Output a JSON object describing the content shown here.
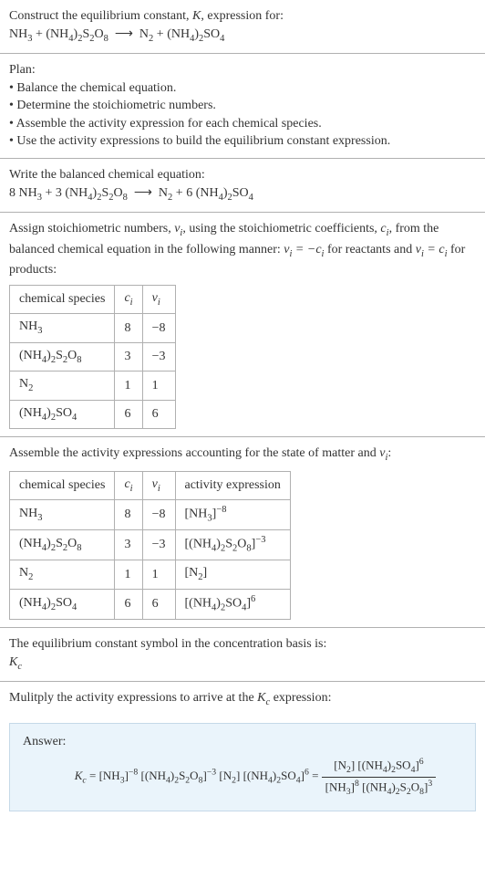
{
  "colors": {
    "text": "#333333",
    "rule": "#b0b0b0",
    "answer_bg": "#eaf4fb",
    "answer_border": "#c5d9e8",
    "background": "#ffffff"
  },
  "intro": {
    "line1": "Construct the equilibrium constant, K, expression for:",
    "reaction_plain": "NH3 + (NH4)2S2O8 ⟶ N2 + (NH4)2SO4"
  },
  "plan": {
    "heading": "Plan:",
    "b1": "• Balance the chemical equation.",
    "b2": "• Determine the stoichiometric numbers.",
    "b3": "• Assemble the activity expression for each chemical species.",
    "b4": "• Use the activity expressions to build the equilibrium constant expression."
  },
  "balanced": {
    "heading": "Write the balanced chemical equation:",
    "reaction_plain": "8 NH3 + 3 (NH4)2S2O8 ⟶ N2 + 6 (NH4)2SO4"
  },
  "stoich": {
    "text_a": "Assign stoichiometric numbers, ",
    "text_b": ", using the stoichiometric coefficients, ",
    "text_c": ", from the balanced chemical equation in the following manner: ",
    "text_d": " for reactants and ",
    "text_e": " for products:",
    "nu": "νᵢ",
    "ci": "cᵢ",
    "rel1": "νᵢ = −cᵢ",
    "rel2": "νᵢ = cᵢ",
    "table": {
      "h1": "chemical species",
      "h2": "cᵢ",
      "h3": "νᵢ",
      "r1c1": "NH3",
      "r1c2": "8",
      "r1c3": "−8",
      "r2c1": "(NH4)2S2O8",
      "r2c2": "3",
      "r2c3": "−3",
      "r3c1": "N2",
      "r3c2": "1",
      "r3c3": "1",
      "r4c1": "(NH4)2SO4",
      "r4c2": "6",
      "r4c3": "6"
    }
  },
  "activity": {
    "text_a": "Assemble the activity expressions accounting for the state of matter and ",
    "text_b": ":",
    "nu": "νᵢ",
    "table": {
      "h1": "chemical species",
      "h2": "cᵢ",
      "h3": "νᵢ",
      "h4": "activity expression",
      "r1c1": "NH3",
      "r1c2": "8",
      "r1c3": "−8",
      "r1c4": "[NH3]^−8",
      "r2c1": "(NH4)2S2O8",
      "r2c2": "3",
      "r2c3": "−3",
      "r2c4": "[(NH4)2S2O8]^−3",
      "r3c1": "N2",
      "r3c2": "1",
      "r3c3": "1",
      "r3c4": "[N2]",
      "r4c1": "(NH4)2SO4",
      "r4c2": "6",
      "r4c3": "6",
      "r4c4": "[(NH4)2SO4]^6"
    }
  },
  "symbol": {
    "line1": "The equilibrium constant symbol in the concentration basis is:",
    "kc": "Kc"
  },
  "multiply": {
    "line": "Mulitply the activity expressions to arrive at the Kc expression:"
  },
  "answer": {
    "label": "Answer:",
    "lhs": "Kc = ",
    "flat": "[NH3]^−8 [(NH4)2S2O8]^−3 [N2] [(NH4)2SO4]^6",
    "eq": " = ",
    "num": "[N2] [(NH4)2SO4]^6",
    "den": "[NH3]^8 [(NH4)2S2O8]^3"
  }
}
